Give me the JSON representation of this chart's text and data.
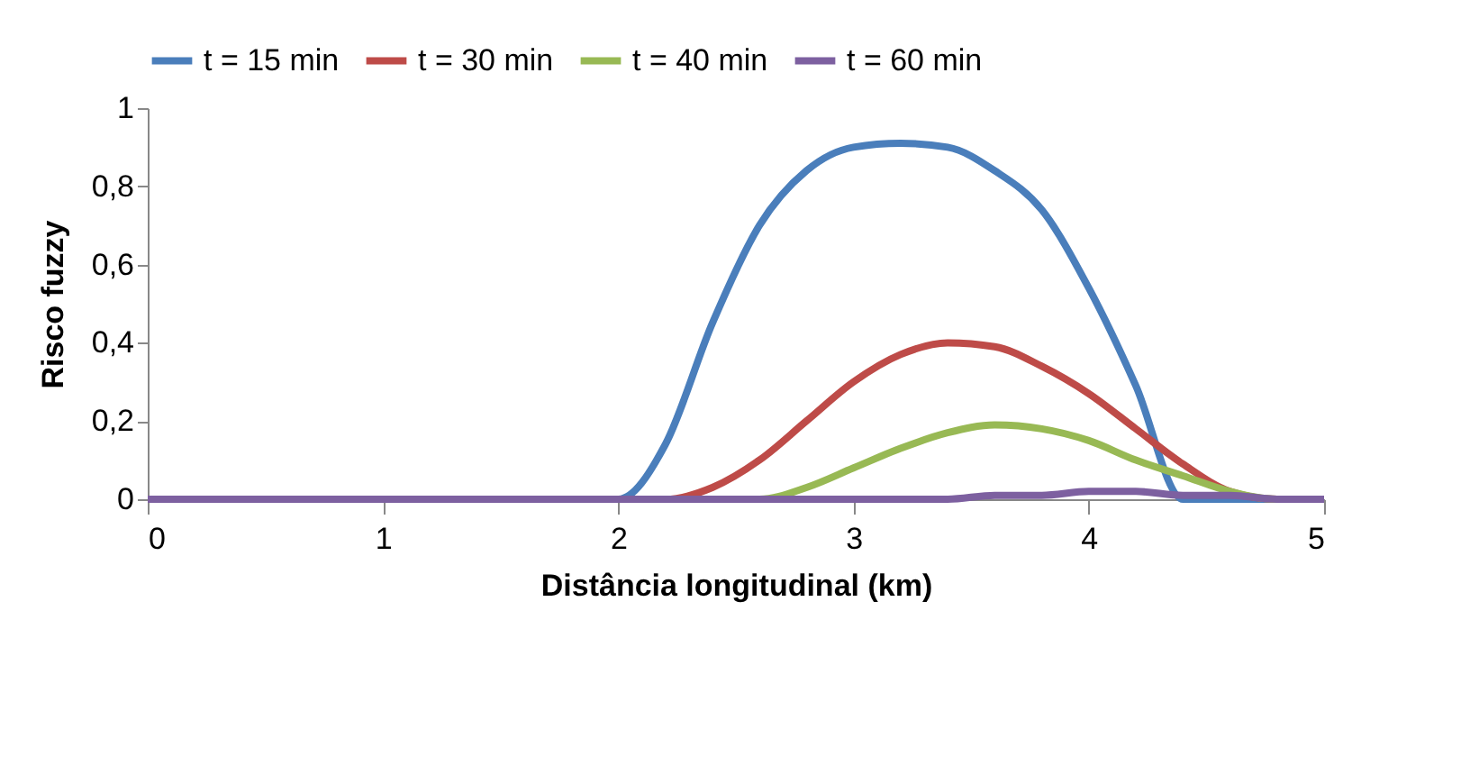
{
  "chart_data": {
    "type": "line",
    "xlabel": "Distância longitudinal (km)",
    "ylabel": "Risco fuzzy",
    "x": [
      0,
      2,
      2.2,
      2.4,
      2.6,
      2.8,
      3,
      3.2,
      3.4,
      3.6,
      3.8,
      4,
      4.2,
      4.4,
      4.6,
      4.8,
      5
    ],
    "series": [
      {
        "name": "t = 15 min",
        "color": "#4a7ebb",
        "values": [
          0,
          0,
          0.14,
          0.45,
          0.7,
          0.84,
          0.9,
          0.91,
          0.9,
          0.84,
          0.74,
          0.54,
          0.29,
          0,
          0,
          0,
          0
        ]
      },
      {
        "name": "t = 30 min",
        "color": "#be4b48",
        "values": [
          0,
          0,
          0,
          0.03,
          0.1,
          0.2,
          0.3,
          0.37,
          0.4,
          0.39,
          0.34,
          0.27,
          0.18,
          0.09,
          0.02,
          0,
          0
        ]
      },
      {
        "name": "t = 40 min",
        "color": "#98b954",
        "values": [
          null,
          null,
          null,
          0,
          0,
          0.03,
          0.08,
          0.13,
          0.17,
          0.19,
          0.18,
          0.15,
          0.1,
          0.06,
          0.02,
          0,
          0
        ]
      },
      {
        "name": "t = 60 min",
        "color": "#7d60a0",
        "values": [
          0,
          0,
          0,
          0,
          0,
          0,
          0,
          0,
          0,
          0.01,
          0.01,
          0.02,
          0.02,
          0.01,
          0.01,
          0,
          0
        ]
      }
    ],
    "xlim": [
      0,
      5
    ],
    "xticks": [
      0,
      1,
      2,
      3,
      4,
      5
    ],
    "ylim": [
      0,
      1
    ],
    "yticks": [
      0,
      {
        "value": 0.2,
        "label": "0,2"
      },
      {
        "value": 0.4,
        "label": "0,4"
      },
      {
        "value": 0.6,
        "label": "0,6"
      },
      {
        "value": 0.8,
        "label": "0,8"
      },
      1
    ],
    "grid": false,
    "legend": "top",
    "marker": "none",
    "line_style": "solid"
  }
}
